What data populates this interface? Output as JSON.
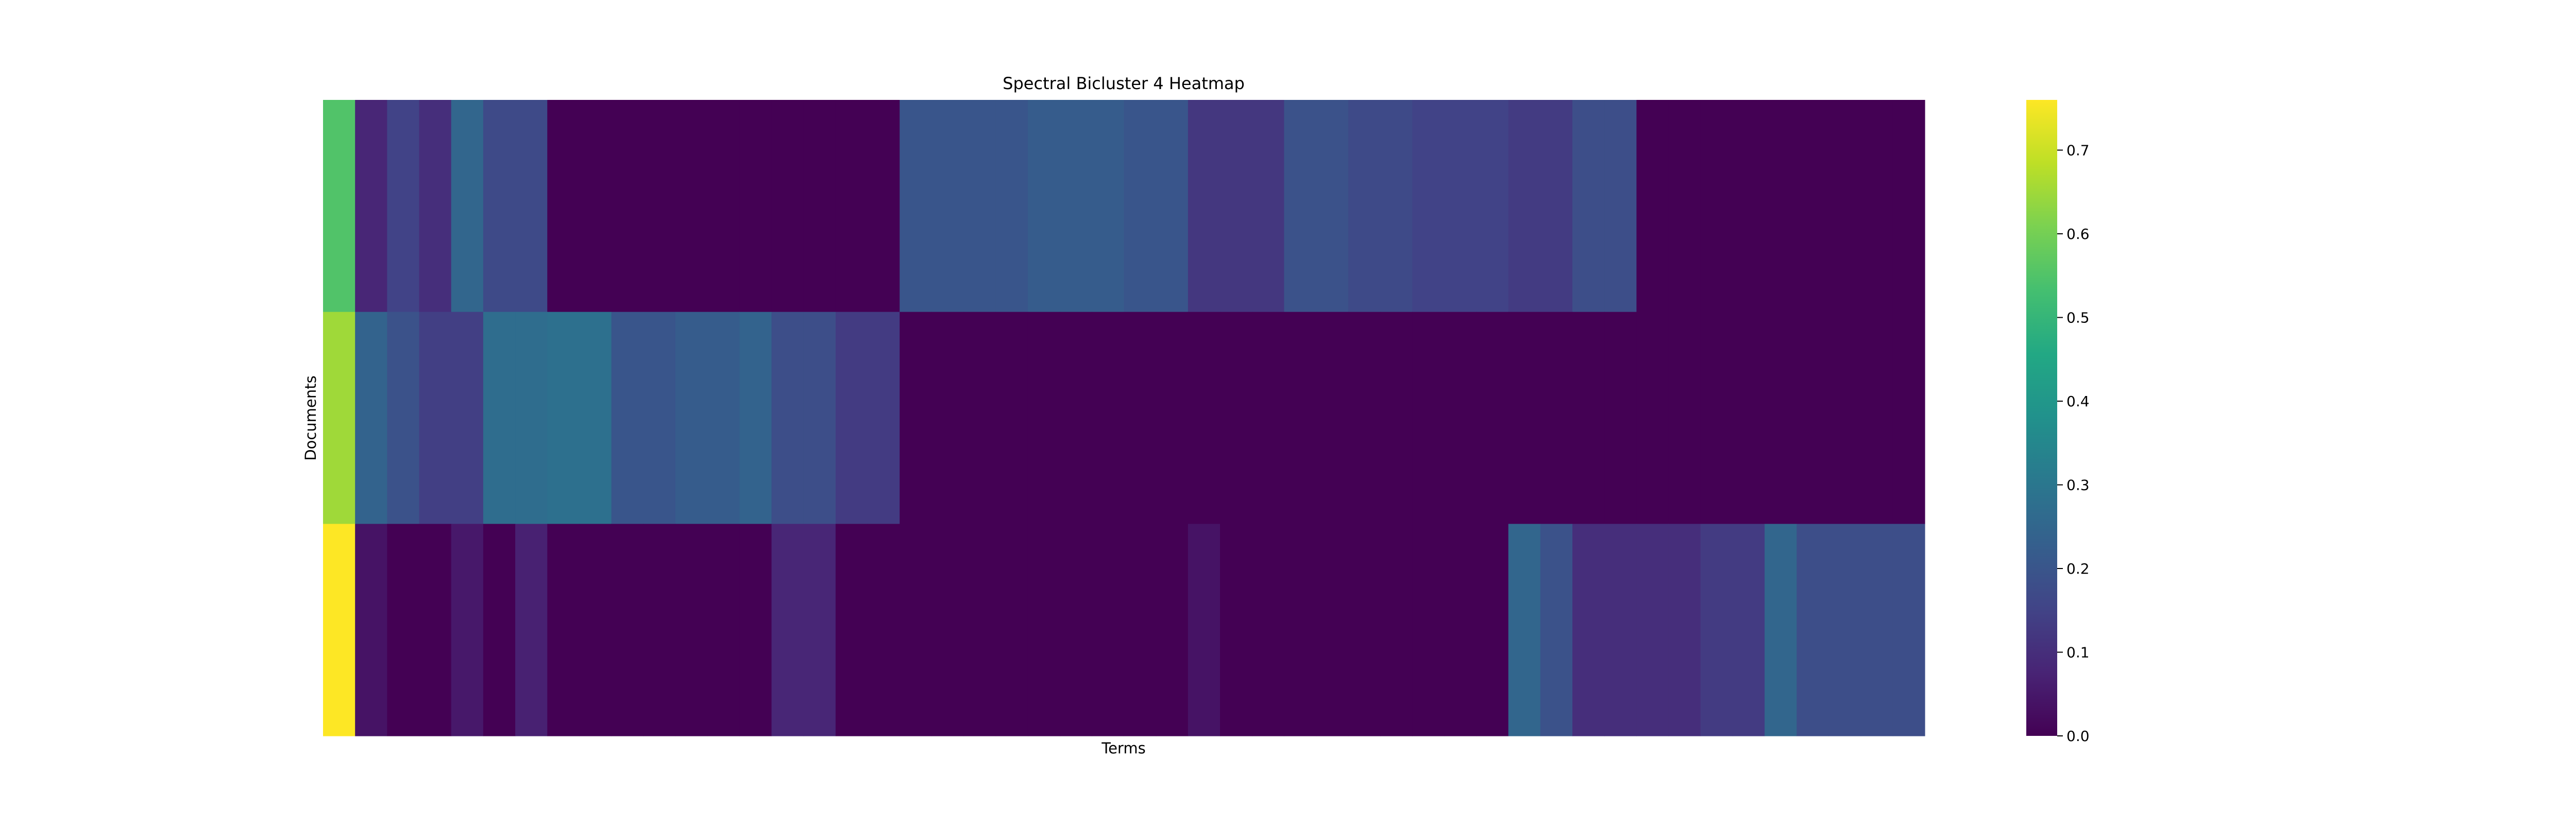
{
  "chart_data": {
    "type": "heatmap",
    "title": "Spectral Bicluster 4 Heatmap",
    "xlabel": "Terms",
    "ylabel": "Documents",
    "colormap": "viridis",
    "colorbar": {
      "min": 0.0,
      "max": 0.76,
      "ticks": [
        0.0,
        0.1,
        0.2,
        0.3,
        0.4,
        0.5,
        0.6,
        0.7
      ],
      "tick_labels": [
        "0.0",
        "0.1",
        "0.2",
        "0.3",
        "0.4",
        "0.5",
        "0.6",
        "0.7"
      ]
    },
    "rows": 3,
    "columns": 50,
    "values": [
      [
        0.55,
        0.08,
        0.15,
        0.1,
        0.25,
        0.17,
        0.17,
        0.0,
        0.0,
        0.0,
        0.0,
        0.0,
        0.0,
        0.0,
        0.0,
        0.0,
        0.0,
        0.0,
        0.2,
        0.2,
        0.2,
        0.2,
        0.22,
        0.22,
        0.22,
        0.2,
        0.2,
        0.12,
        0.12,
        0.12,
        0.19,
        0.19,
        0.17,
        0.17,
        0.15,
        0.15,
        0.15,
        0.13,
        0.13,
        0.18,
        0.18,
        0.0,
        0.0,
        0.0,
        0.0,
        0.0,
        0.0,
        0.0,
        0.0,
        0.0
      ],
      [
        0.65,
        0.24,
        0.19,
        0.14,
        0.14,
        0.27,
        0.27,
        0.28,
        0.28,
        0.2,
        0.2,
        0.22,
        0.22,
        0.24,
        0.18,
        0.18,
        0.13,
        0.13,
        0.0,
        0.0,
        0.0,
        0.0,
        0.0,
        0.0,
        0.0,
        0.0,
        0.0,
        0.0,
        0.0,
        0.0,
        0.0,
        0.0,
        0.0,
        0.0,
        0.0,
        0.0,
        0.0,
        0.0,
        0.0,
        0.0,
        0.0,
        0.0,
        0.0,
        0.0,
        0.0,
        0.0,
        0.0,
        0.0,
        0.0,
        0.0
      ],
      [
        0.76,
        0.04,
        0.0,
        0.0,
        0.05,
        0.0,
        0.07,
        0.0,
        0.0,
        0.0,
        0.0,
        0.0,
        0.0,
        0.0,
        0.08,
        0.08,
        0.0,
        0.0,
        0.0,
        0.0,
        0.0,
        0.0,
        0.0,
        0.0,
        0.0,
        0.0,
        0.0,
        0.04,
        0.0,
        0.0,
        0.0,
        0.0,
        0.0,
        0.0,
        0.0,
        0.0,
        0.0,
        0.25,
        0.19,
        0.1,
        0.1,
        0.1,
        0.1,
        0.13,
        0.13,
        0.25,
        0.18,
        0.18,
        0.18,
        0.18
      ]
    ],
    "grid": false,
    "legend": "colorbar-right"
  }
}
